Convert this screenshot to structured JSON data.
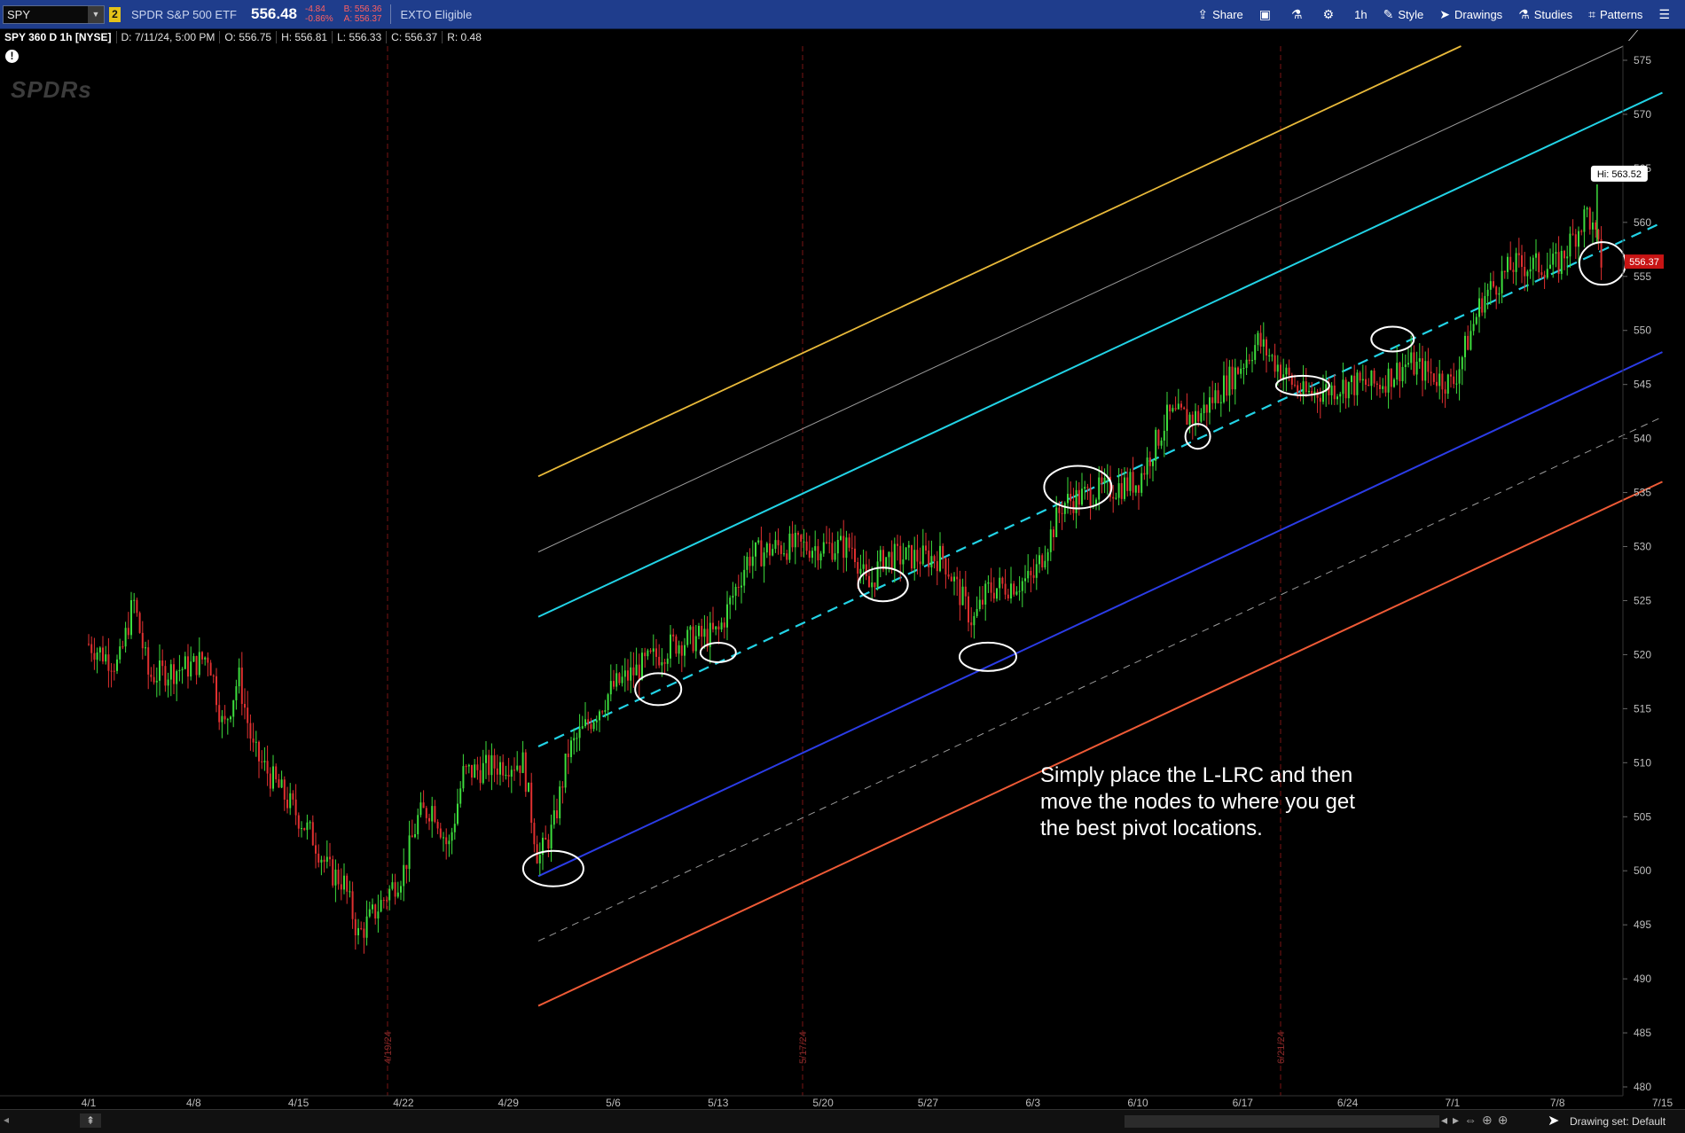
{
  "toolbar": {
    "symbol": "SPY",
    "link_badge": "2",
    "description": "SPDR S&P 500 ETF",
    "last_price": "556.48",
    "net_change": "-4.84",
    "pct_change": "-0.86%",
    "bid": "B: 556.36",
    "ask": "A: 556.37",
    "exto": "EXTO Eligible",
    "share": "Share",
    "interval": "1h",
    "style": "Style",
    "drawings": "Drawings",
    "studies": "Studies",
    "patterns": "Patterns"
  },
  "infobar": {
    "title": "SPY 360 D 1h [NYSE]",
    "date": "D: 7/11/24, 5:00 PM",
    "open": "O: 556.75",
    "high": "H: 556.81",
    "low": "L: 556.33",
    "close": "C: 556.37",
    "range": "R: 0.48"
  },
  "logo_text": "SPDRs",
  "price_axis_ticks": [
    "575",
    "570",
    "565",
    "560",
    "555",
    "550",
    "545",
    "540",
    "535",
    "530",
    "525",
    "520",
    "515",
    "510",
    "505",
    "500",
    "495",
    "490",
    "485",
    "480"
  ],
  "time_axis_ticks": [
    "4/1",
    "4/8",
    "4/15",
    "4/22",
    "4/29",
    "5/6",
    "5/13",
    "5/20",
    "5/27",
    "6/3",
    "6/10",
    "6/17",
    "6/24",
    "7/1",
    "7/8",
    "7/15"
  ],
  "expiry_labels": [
    "4/19/24",
    "5/17/24",
    "6/21/24"
  ],
  "current_price_tag": "556.37",
  "hi_bubble": "Hi: 563.52",
  "annotation_lines": [
    "Simply place the L-LRC and then",
    "move the nodes to where you get",
    "the best pivot locations."
  ],
  "statusbar": {
    "drawing_set": "Drawing set: Default"
  },
  "colors": {
    "up": "#3ddc3d",
    "down": "#e03030",
    "upper_outer": "#e8b93a",
    "upper_mid": "#9a9a9a",
    "upper_inner": "#22d3e6",
    "middle": "#22d3e6",
    "lower_inner": "#2b3ce6",
    "lower_mid": "#9a9a9a",
    "lower_outer": "#ee5a36"
  },
  "chart_data": {
    "type": "candlestick",
    "symbol": "SPY",
    "interval": "1h",
    "ylim": [
      480,
      576
    ],
    "price_path": [
      [
        "4/1",
        521
      ],
      [
        "4/3",
        519
      ],
      [
        "4/4",
        525
      ],
      [
        "4/5",
        518
      ],
      [
        "4/8",
        519
      ],
      [
        "4/9",
        520
      ],
      [
        "4/10",
        513
      ],
      [
        "4/11",
        518
      ],
      [
        "4/12",
        511
      ],
      [
        "4/15",
        505
      ],
      [
        "4/16",
        503
      ],
      [
        "4/17",
        500
      ],
      [
        "4/18",
        499
      ],
      [
        "4/19",
        494
      ],
      [
        "4/22",
        500
      ],
      [
        "4/23",
        505
      ],
      [
        "4/24",
        506
      ],
      [
        "4/25",
        502
      ],
      [
        "4/26",
        509
      ],
      [
        "4/29",
        510
      ],
      [
        "4/30",
        510
      ],
      [
        "5/1",
        501
      ],
      [
        "5/2",
        504
      ],
      [
        "5/3",
        511
      ],
      [
        "5/6",
        517
      ],
      [
        "5/7",
        518
      ],
      [
        "5/9",
        520
      ],
      [
        "5/10",
        521
      ],
      [
        "5/13",
        522
      ],
      [
        "5/15",
        529
      ],
      [
        "5/17",
        530
      ],
      [
        "5/20",
        530
      ],
      [
        "5/22",
        530
      ],
      [
        "5/23",
        526
      ],
      [
        "5/24",
        529
      ],
      [
        "5/28",
        529
      ],
      [
        "5/30",
        523
      ],
      [
        "5/31",
        526
      ],
      [
        "6/3",
        527
      ],
      [
        "6/5",
        534
      ],
      [
        "6/7",
        535
      ],
      [
        "6/10",
        536
      ],
      [
        "6/12",
        542
      ],
      [
        "6/14",
        542
      ],
      [
        "6/17",
        547
      ],
      [
        "6/18",
        549
      ],
      [
        "6/21",
        544
      ],
      [
        "6/24",
        545
      ],
      [
        "6/26",
        545
      ],
      [
        "6/28",
        547
      ],
      [
        "7/1",
        545
      ],
      [
        "7/3",
        553
      ],
      [
        "7/5",
        556
      ],
      [
        "7/8",
        556
      ],
      [
        "7/10",
        561
      ],
      [
        "7/11",
        556
      ]
    ],
    "high": 563.52,
    "last": 556.37,
    "channel": {
      "name": "L-LRC",
      "start_date": "5/1",
      "end_date": "7/15",
      "middle_start": 511.5,
      "middle_end": 560,
      "offsets": [
        25,
        18,
        12,
        -12,
        -18,
        -24
      ]
    }
  }
}
